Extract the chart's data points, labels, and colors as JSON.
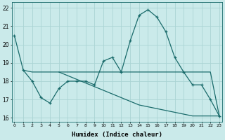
{
  "xlabel": "Humidex (Indice chaleur)",
  "bg_color": "#caeaea",
  "grid_color": "#aad4d4",
  "line_color": "#1a6b6b",
  "x": [
    0,
    1,
    2,
    3,
    4,
    5,
    6,
    7,
    8,
    9,
    10,
    11,
    12,
    13,
    14,
    15,
    16,
    17,
    18,
    19,
    20,
    21,
    22,
    23
  ],
  "line1": [
    20.5,
    18.6,
    18.0,
    17.1,
    16.8,
    17.6,
    18.0,
    18.0,
    18.0,
    17.8,
    19.1,
    19.3,
    18.5,
    20.2,
    21.6,
    21.9,
    21.5,
    20.7,
    19.3,
    18.5,
    17.8,
    17.8,
    17.0,
    16.1
  ],
  "line2_x": [
    1,
    2,
    3,
    4,
    5,
    6,
    7,
    8,
    9,
    10,
    11,
    12,
    13,
    14,
    15,
    16,
    17,
    18,
    19,
    20,
    21,
    22,
    23
  ],
  "line2": [
    18.6,
    18.5,
    18.5,
    18.5,
    18.5,
    18.5,
    18.5,
    18.5,
    18.5,
    18.5,
    18.5,
    18.5,
    18.5,
    18.5,
    18.5,
    18.5,
    18.5,
    18.5,
    18.5,
    18.5,
    18.5,
    18.5,
    16.1
  ],
  "line3_x": [
    5,
    6,
    7,
    8,
    9,
    10,
    11,
    12,
    13,
    14,
    15,
    16,
    17,
    18,
    19,
    20,
    21,
    22,
    23
  ],
  "line3": [
    18.5,
    18.3,
    18.1,
    17.9,
    17.7,
    17.5,
    17.3,
    17.1,
    16.9,
    16.7,
    16.6,
    16.5,
    16.4,
    16.3,
    16.2,
    16.1,
    16.1,
    16.1,
    16.1
  ],
  "ylim": [
    15.8,
    22.3
  ],
  "yticks": [
    16,
    17,
    18,
    19,
    20,
    21,
    22
  ],
  "xticks": [
    0,
    1,
    2,
    3,
    4,
    5,
    6,
    7,
    8,
    9,
    10,
    11,
    12,
    13,
    14,
    15,
    16,
    17,
    18,
    19,
    20,
    21,
    22,
    23
  ],
  "xlim": [
    -0.3,
    23.3
  ]
}
